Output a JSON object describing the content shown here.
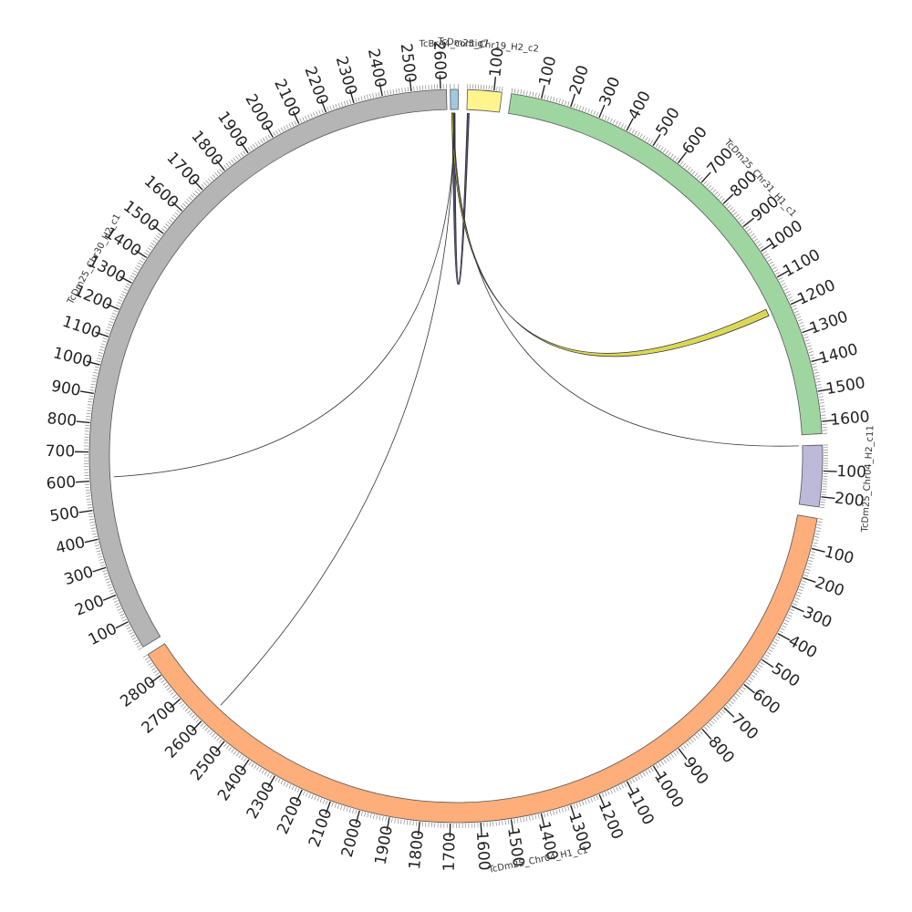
{
  "chart_data": {
    "type": "circos",
    "tick_major_step": 100,
    "tick_minor_step": 10,
    "segments": [
      {
        "name": "TcBrA4_contig7",
        "color": "#9ecae1",
        "start_deg": -0.9,
        "end_deg": 0.35,
        "length": 20,
        "major_ticks": []
      },
      {
        "name": "TcDm25_Chr19_H2_c2",
        "color": "#fff58c",
        "start_deg": 1.8,
        "end_deg": 7.2,
        "length": 130,
        "major_ticks": [
          100
        ]
      },
      {
        "name": "TcDm25_Chr31_H1_c1",
        "color": "#9fd5a1",
        "start_deg": 8.7,
        "end_deg": 86.5,
        "length": 1640,
        "major_ticks": [
          100,
          200,
          300,
          400,
          500,
          600,
          700,
          800,
          900,
          1000,
          1100,
          1200,
          1300,
          1400,
          1500,
          1600
        ]
      },
      {
        "name": "TcDm25_Chr04_H2_c11",
        "color": "#bcb9d9",
        "start_deg": 88.3,
        "end_deg": 98.0,
        "length": 240,
        "major_ticks": [
          100,
          200
        ]
      },
      {
        "name": "TcDm25_Chr04_H1_c1",
        "color": "#fdae7a",
        "start_deg": 99.8,
        "end_deg": 237.2,
        "length": 2880,
        "major_ticks": [
          100,
          200,
          300,
          400,
          500,
          600,
          700,
          800,
          900,
          1000,
          1100,
          1200,
          1300,
          1400,
          1500,
          1600,
          1700,
          1800,
          1900,
          2000,
          2100,
          2200,
          2300,
          2400,
          2500,
          2600,
          2700,
          2800
        ]
      },
      {
        "name": "TcDm25_Chr30_H2_c1",
        "color": "#b5b5b5",
        "start_deg": 238.6,
        "end_deg": 358.5,
        "length": 2620,
        "major_ticks": [
          100,
          200,
          300,
          400,
          500,
          600,
          700,
          800,
          900,
          1000,
          1100,
          1200,
          1300,
          1400,
          1500,
          1600,
          1700,
          1800,
          1900,
          2000,
          2100,
          2200,
          2300,
          2400,
          2500,
          2600
        ]
      }
    ],
    "links": [
      {
        "from_segment": "TcBrA4_contig7",
        "from_pos": [
          4,
          12
        ],
        "to_segment": "TcDm25_Chr19_H2_c2",
        "to_pos": [
          2,
          10
        ],
        "color": "#2e2f5a",
        "ribbon": true
      },
      {
        "from_segment": "TcBrA4_contig7",
        "from_pos": [
          3,
          7
        ],
        "to_segment": "TcDm25_Chr31_H1_c1",
        "to_pos": [
          1180,
          1205
        ],
        "color": "#d6d13a",
        "ribbon": true
      },
      {
        "from_segment": "TcBrA4_contig7",
        "from_pos": [
          9,
          10
        ],
        "to_segment": "TcDm25_Chr04_H2_c11",
        "to_pos": [
          0,
          3
        ],
        "color": "#333333",
        "ribbon": false
      },
      {
        "from_segment": "TcBrA4_contig7",
        "from_pos": [
          8,
          9
        ],
        "to_segment": "TcDm25_Chr04_H1_c1",
        "to_pos": [
          2590,
          2595
        ],
        "color": "#333333",
        "ribbon": false
      },
      {
        "from_segment": "TcBrA4_contig7",
        "from_pos": [
          10,
          11
        ],
        "to_segment": "TcDm25_Chr30_H2_c1",
        "to_pos": [
          610,
          615
        ],
        "color": "#333333",
        "ribbon": false
      }
    ]
  }
}
